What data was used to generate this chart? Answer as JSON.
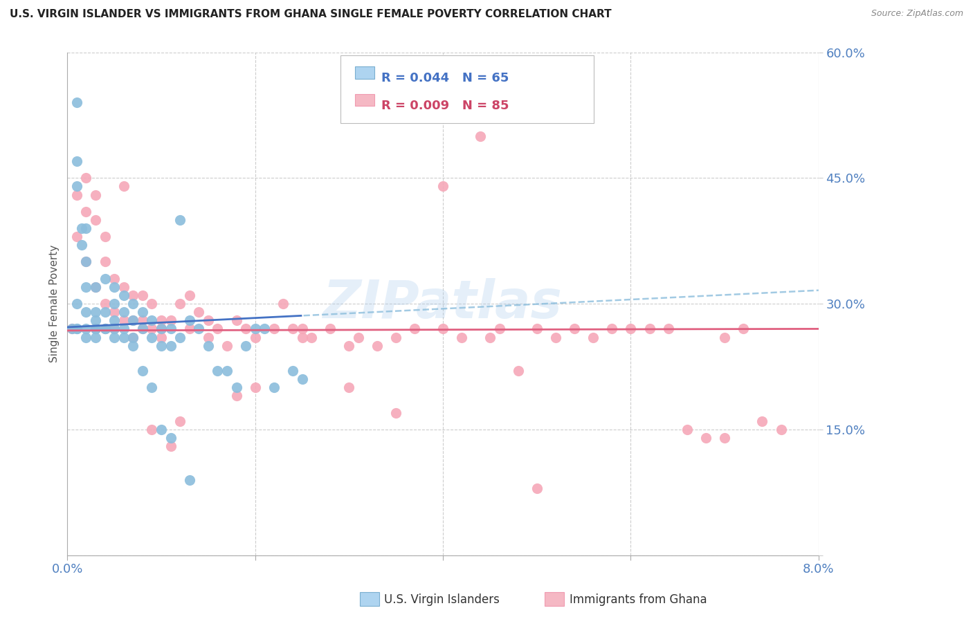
{
  "title": "U.S. VIRGIN ISLANDER VS IMMIGRANTS FROM GHANA SINGLE FEMALE POVERTY CORRELATION CHART",
  "source": "Source: ZipAtlas.com",
  "ylabel": "Single Female Poverty",
  "legend_label_blue": "U.S. Virgin Islanders",
  "legend_label_pink": "Immigrants from Ghana",
  "blue_color": "#8BBDDC",
  "pink_color": "#F5A8B8",
  "blue_line_color": "#4472C4",
  "pink_line_color": "#E06080",
  "watermark": "ZIPatlas",
  "blue_R": 0.044,
  "blue_N": 65,
  "pink_R": 0.009,
  "pink_N": 85,
  "axis_color": "#5080C0",
  "grid_color": "#CCCCCC",
  "xlim": [
    0,
    0.08
  ],
  "ylim": [
    0,
    0.6
  ],
  "x_ticks": [
    0.0,
    0.02,
    0.04,
    0.06,
    0.08
  ],
  "y_ticks": [
    0.0,
    0.15,
    0.3,
    0.45,
    0.6
  ],
  "y_tick_labels": [
    "",
    "15.0%",
    "30.0%",
    "45.0%",
    "60.0%"
  ],
  "blue_x": [
    0.0005,
    0.001,
    0.001,
    0.001,
    0.001,
    0.0015,
    0.0015,
    0.002,
    0.002,
    0.002,
    0.002,
    0.003,
    0.003,
    0.003,
    0.003,
    0.004,
    0.004,
    0.004,
    0.005,
    0.005,
    0.005,
    0.005,
    0.006,
    0.006,
    0.006,
    0.007,
    0.007,
    0.007,
    0.008,
    0.008,
    0.009,
    0.009,
    0.01,
    0.01,
    0.011,
    0.011,
    0.012,
    0.012,
    0.013,
    0.014,
    0.015,
    0.016,
    0.017,
    0.018,
    0.019,
    0.02,
    0.021,
    0.022,
    0.024,
    0.025,
    0.001,
    0.001,
    0.002,
    0.002,
    0.003,
    0.003,
    0.004,
    0.005,
    0.006,
    0.007,
    0.008,
    0.009,
    0.01,
    0.011,
    0.013
  ],
  "blue_y": [
    0.27,
    0.54,
    0.47,
    0.44,
    0.3,
    0.39,
    0.37,
    0.39,
    0.35,
    0.32,
    0.29,
    0.32,
    0.29,
    0.28,
    0.27,
    0.33,
    0.29,
    0.27,
    0.32,
    0.3,
    0.28,
    0.26,
    0.31,
    0.29,
    0.27,
    0.3,
    0.28,
    0.26,
    0.29,
    0.27,
    0.28,
    0.26,
    0.27,
    0.25,
    0.27,
    0.25,
    0.26,
    0.4,
    0.28,
    0.27,
    0.25,
    0.22,
    0.22,
    0.2,
    0.25,
    0.27,
    0.27,
    0.2,
    0.22,
    0.21,
    0.27,
    0.27,
    0.26,
    0.27,
    0.27,
    0.26,
    0.27,
    0.27,
    0.26,
    0.25,
    0.22,
    0.2,
    0.15,
    0.14,
    0.09
  ],
  "pink_x": [
    0.0005,
    0.001,
    0.001,
    0.002,
    0.002,
    0.002,
    0.003,
    0.003,
    0.003,
    0.004,
    0.004,
    0.004,
    0.005,
    0.005,
    0.006,
    0.006,
    0.007,
    0.007,
    0.008,
    0.008,
    0.009,
    0.009,
    0.01,
    0.01,
    0.011,
    0.012,
    0.013,
    0.013,
    0.014,
    0.015,
    0.016,
    0.017,
    0.018,
    0.019,
    0.02,
    0.022,
    0.023,
    0.024,
    0.025,
    0.026,
    0.028,
    0.03,
    0.031,
    0.033,
    0.035,
    0.037,
    0.04,
    0.042,
    0.044,
    0.046,
    0.048,
    0.05,
    0.052,
    0.054,
    0.056,
    0.058,
    0.06,
    0.062,
    0.064,
    0.066,
    0.068,
    0.07,
    0.072,
    0.074,
    0.076,
    0.003,
    0.004,
    0.005,
    0.006,
    0.007,
    0.008,
    0.009,
    0.01,
    0.011,
    0.012,
    0.015,
    0.018,
    0.02,
    0.025,
    0.03,
    0.035,
    0.04,
    0.045,
    0.05,
    0.07
  ],
  "pink_y": [
    0.27,
    0.43,
    0.38,
    0.45,
    0.41,
    0.35,
    0.43,
    0.4,
    0.32,
    0.38,
    0.35,
    0.3,
    0.33,
    0.29,
    0.32,
    0.28,
    0.31,
    0.28,
    0.31,
    0.28,
    0.3,
    0.27,
    0.28,
    0.26,
    0.28,
    0.3,
    0.31,
    0.27,
    0.29,
    0.28,
    0.27,
    0.25,
    0.28,
    0.27,
    0.26,
    0.27,
    0.3,
    0.27,
    0.27,
    0.26,
    0.27,
    0.25,
    0.26,
    0.25,
    0.26,
    0.27,
    0.44,
    0.26,
    0.5,
    0.27,
    0.22,
    0.27,
    0.26,
    0.27,
    0.26,
    0.27,
    0.27,
    0.27,
    0.27,
    0.15,
    0.14,
    0.14,
    0.27,
    0.16,
    0.15,
    0.27,
    0.27,
    0.27,
    0.44,
    0.26,
    0.27,
    0.15,
    0.27,
    0.13,
    0.16,
    0.26,
    0.19,
    0.2,
    0.26,
    0.2,
    0.17,
    0.27,
    0.26,
    0.08,
    0.26
  ]
}
